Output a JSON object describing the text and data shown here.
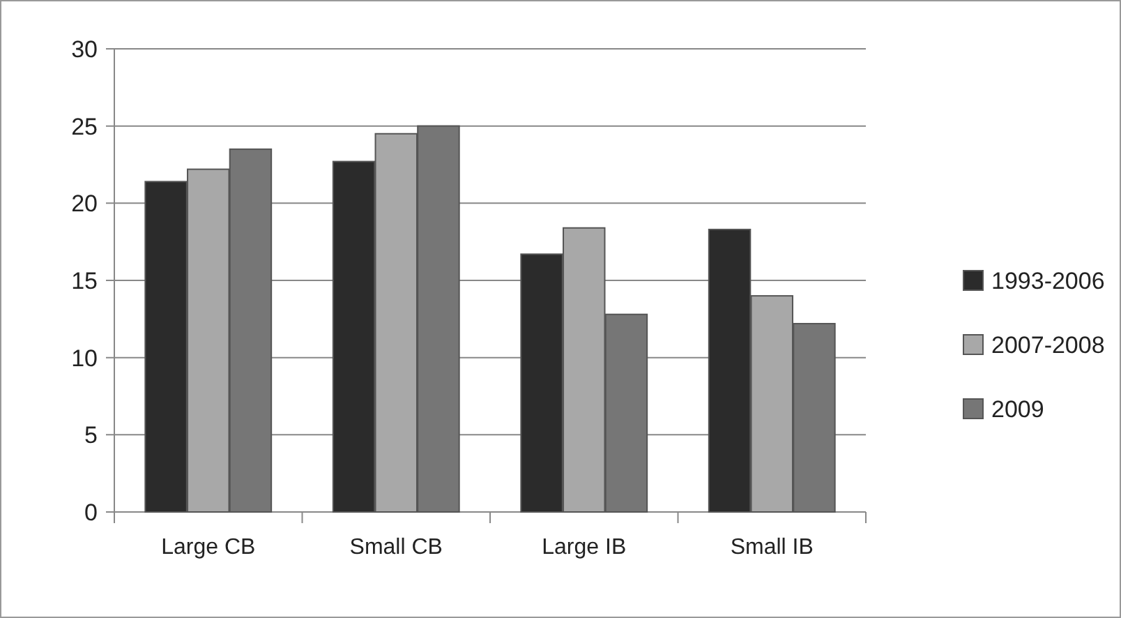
{
  "chart_data": {
    "type": "bar",
    "categories": [
      "Large CB",
      "Small CB",
      "Large IB",
      "Small IB"
    ],
    "series": [
      {
        "name": "1993-2006",
        "color": "#2b2b2b",
        "values": [
          21.4,
          22.7,
          16.7,
          18.3
        ]
      },
      {
        "name": "2007-2008",
        "color": "#a8a8a8",
        "values": [
          22.2,
          24.5,
          18.4,
          14.0
        ]
      },
      {
        "name": "2009",
        "color": "#767676",
        "values": [
          23.5,
          25.0,
          12.8,
          12.2
        ]
      }
    ],
    "ylim": [
      0,
      30
    ],
    "yticks": [
      0,
      5,
      10,
      15,
      20,
      25,
      30
    ],
    "grid": "y",
    "legend": "right"
  }
}
